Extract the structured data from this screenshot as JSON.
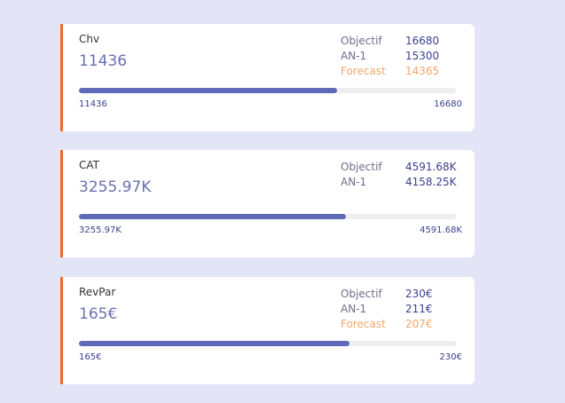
{
  "cards": [
    {
      "title": "Chv",
      "value": 11436,
      "stats": [
        {
          "label": "Objectif",
          "value": 16680
        },
        {
          "label": "AN-1",
          "value": 15300
        },
        {
          "label": "Forecast",
          "value": 14365
        }
      ]
    },
    {
      "title": "CAT",
      "value": 3255.97,
      "value_label": "3255.97K",
      "stats": [
        {
          "label": "Objectif",
          "value": 4591.68,
          "value_label": "4591.68K"
        },
        {
          "label": "AN-1",
          "value": 4158.25,
          "value_label": "4158.25K"
        }
      ]
    },
    {
      "title": "RevPar",
      "value": 165,
      "value_label": "165€",
      "stats": [
        {
          "label": "Objectif",
          "value": 230,
          "value_label": "230€"
        },
        {
          "label": "AN-1",
          "value": 211,
          "value_label": "211€"
        },
        {
          "label": "Forecast",
          "value": 207,
          "value_label": "207€"
        }
      ]
    }
  ]
}
